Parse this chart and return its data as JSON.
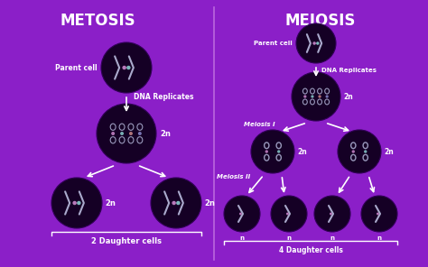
{
  "bg_color": "#8B1FC8",
  "cell_dark": "#150025",
  "cell_mid": "#250040",
  "divider_color": "#bb66dd",
  "arrow_color": "#ffffff",
  "text_color": "#ffffff",
  "title_mitosis": "METOSIS",
  "title_meiosis": "MEIOSIS",
  "dna_colors": [
    "#cc88cc",
    "#88cccc",
    "#cc8888",
    "#8888cc"
  ],
  "chevron_color": "#ccccdd",
  "mitosis": {
    "parent_label": "Parent cell",
    "dna_label": "DNA Replicates",
    "n2_label": "2n",
    "daughter_label": "2 Daughter cells"
  },
  "meiosis": {
    "parent_label": "Parent cell",
    "dna_label": "DNA Replicates",
    "m1_label": "Meiosis I",
    "m2_label": "Meiosis II",
    "n2_label": "2n",
    "n_label": "n",
    "daughter_label": "4 Daughter cells"
  }
}
